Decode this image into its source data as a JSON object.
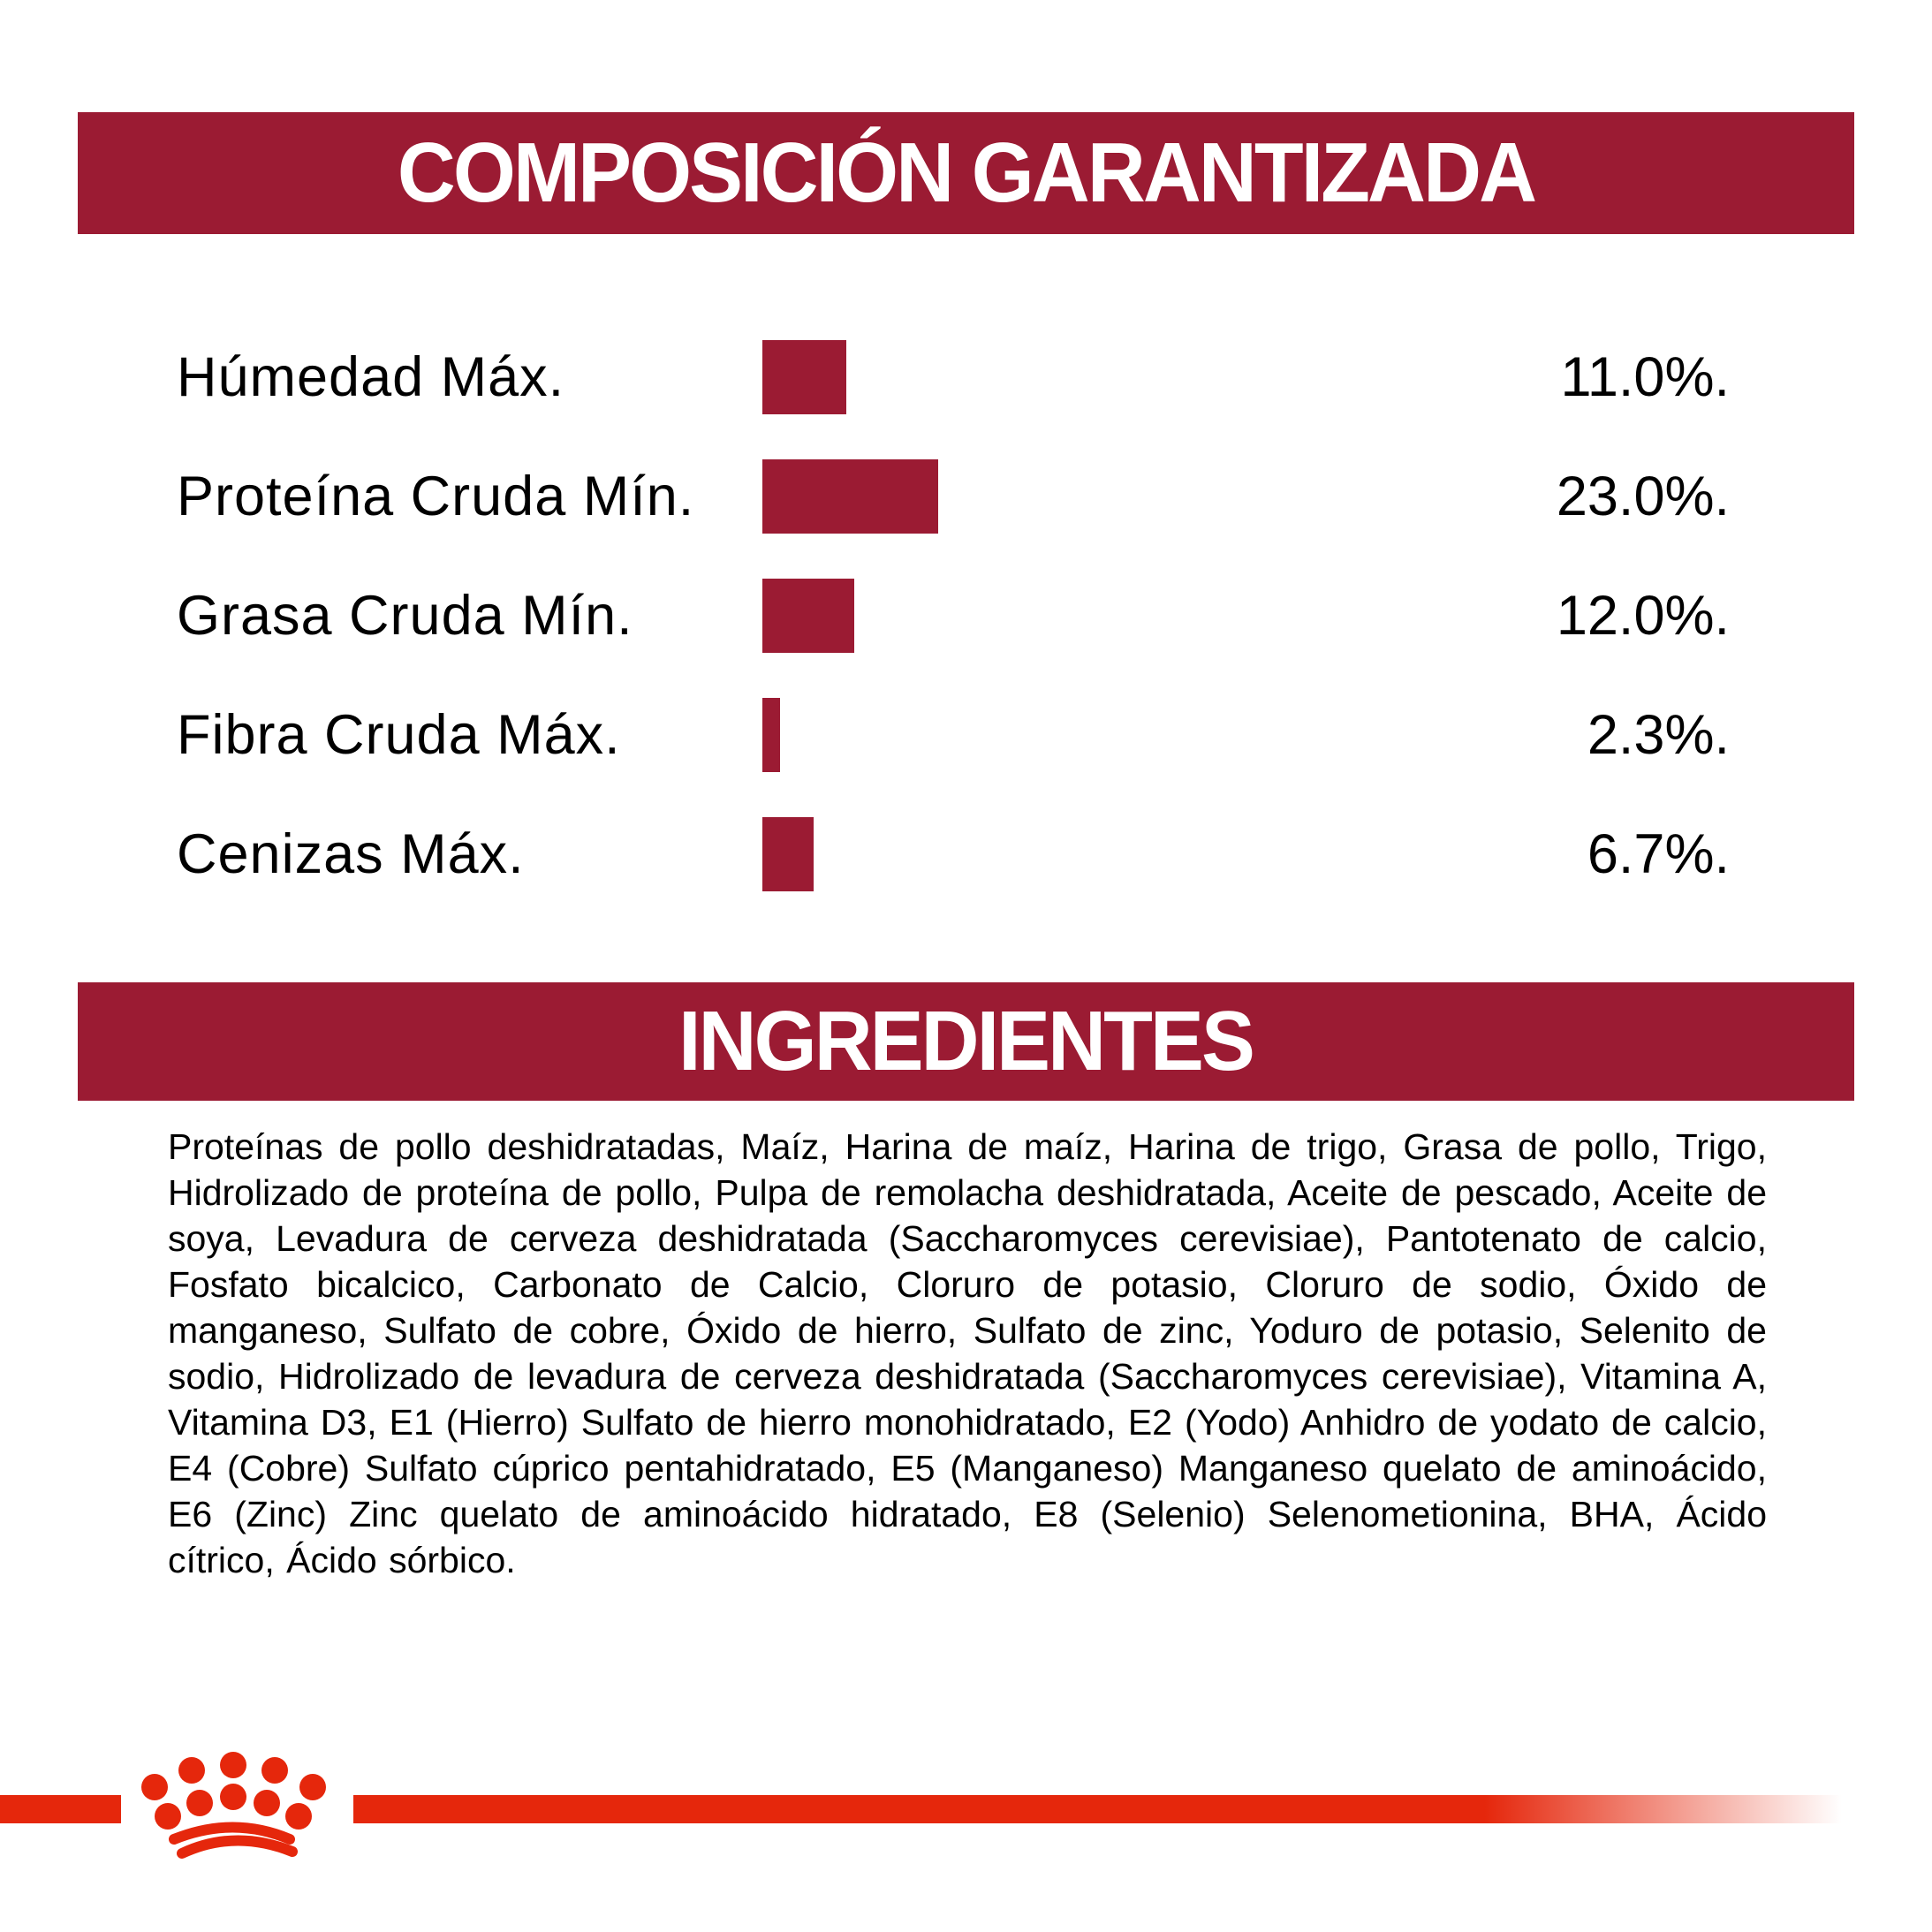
{
  "header": {
    "title": "COMPOSICIÓN GARANTIZADA"
  },
  "chart_data": {
    "type": "bar",
    "orientation": "horizontal",
    "title": "COMPOSICIÓN GARANTIZADA",
    "categories": [
      "Húmedad Máx.",
      "Proteína Cruda Mín.",
      "Grasa Cruda Mín.",
      "Fibra Cruda Máx.",
      "Cenizas Máx."
    ],
    "values": [
      11.0,
      23.0,
      12.0,
      2.3,
      6.7
    ],
    "value_labels": [
      "11.0%.",
      "23.0%.",
      "12.0%.",
      "2.3%.",
      "6.7%."
    ],
    "unit": "%",
    "xlim": [
      0,
      25
    ],
    "grid": false,
    "legend": "none",
    "bar_color": "#9B1B33"
  },
  "ingredients": {
    "title": "INGREDIENTES",
    "text": "Proteínas de pollo deshidratadas, Maíz, Harina de maíz, Harina de trigo, Grasa de pollo, Trigo, Hidrolizado de proteína de pollo, Pulpa de remolacha deshidratada, Aceite de pescado, Aceite de soya, Levadura de cerveza deshidratada (Saccharomyces cerevisiae), Pantotenato de calcio, Fosfato bicalcico, Carbonato de Calcio, Cloruro de potasio, Cloruro de sodio, Óxido de manganeso, Sulfato de cobre, Óxido de hierro, Sulfato de zinc, Yoduro de potasio, Selenito de sodio, Hidrolizado de levadura de cerveza deshidratada (Saccharomyces cerevisiae), Vitamina A, Vitamina D3, E1 (Hierro) Sulfato de hierro monohidratado, E2 (Yodo) Anhidro de yodato de calcio, E4 (Cobre) Sulfato cúprico pentahidratado, E5 (Manganeso) Manganeso quelato de aminoácido, E6 (Zinc) Zinc quelato de aminoácido hidratado, E8 (Selenio) Selenometionina, BHA, Ácido cítrico, Ácido sórbico."
  },
  "footer": {
    "logo_icon": "crown-logo"
  },
  "colors": {
    "crimson": "#9B1B33",
    "red": "#E5270C"
  }
}
